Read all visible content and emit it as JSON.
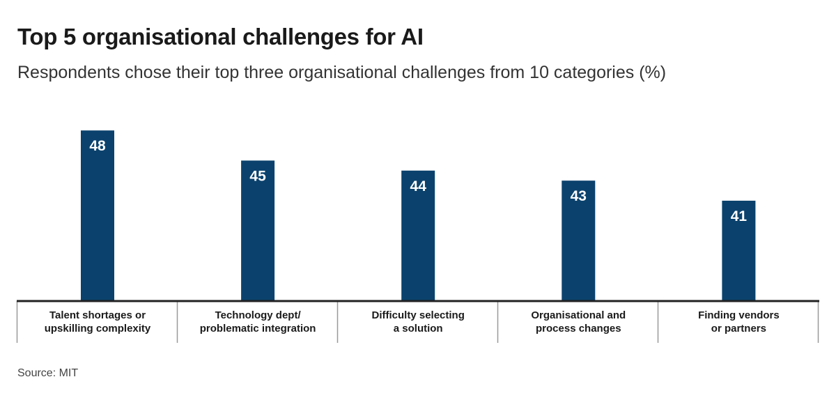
{
  "title": "Top 5 organisational challenges for AI",
  "subtitle": "Respondents chose their top three organisational challenges from 10 categories (%)",
  "source": "Source: MIT",
  "colors": {
    "bar": "#0b426d",
    "axis": "#222222",
    "divider": "#999999"
  },
  "chart_data": {
    "type": "bar",
    "title": "Top 5 organisational challenges for AI",
    "categories": [
      [
        "Talent shortages or",
        "upskilling complexity"
      ],
      [
        "Technology dept/",
        "problematic integration"
      ],
      [
        "Difficulty selecting",
        "a solution"
      ],
      [
        "Organisational and",
        "process changes"
      ],
      [
        "Finding vendors",
        "or partners"
      ]
    ],
    "values": [
      48,
      45,
      44,
      43,
      41
    ],
    "data_labels": [
      "48",
      "45",
      "44",
      "43",
      "41"
    ],
    "xlabel": "",
    "ylabel": "",
    "grid": false
  }
}
